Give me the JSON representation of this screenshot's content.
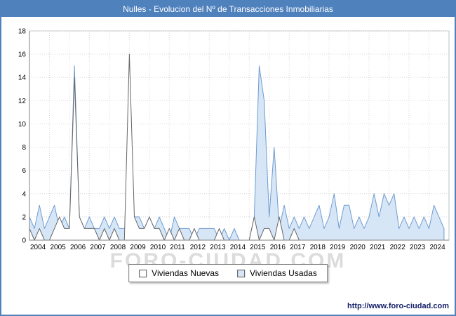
{
  "page": {
    "watermark": "FORO-CIUDAD.COM",
    "url": "http://www.foro-ciudad.com"
  },
  "chart_data": {
    "type": "area",
    "title": "Nulles - Evolucion del Nº de Transacciones Inmobiliarias",
    "xlabel": "",
    "ylabel": "",
    "ylim": [
      0,
      18
    ],
    "y_ticks": [
      0,
      2,
      4,
      6,
      8,
      10,
      12,
      14,
      16,
      18
    ],
    "x_start_year": 2004,
    "x_end_year": 2024,
    "points_per_year": 4,
    "x_tick_labels": [
      "2004",
      "2005",
      "2006",
      "2007",
      "2008",
      "2009",
      "2010",
      "2011",
      "2012",
      "2013",
      "2014",
      "2015",
      "2016",
      "2017",
      "2018",
      "2019",
      "2020",
      "2021",
      "2022",
      "2023",
      "2024"
    ],
    "grid": true,
    "legend_position": "bottom",
    "colors": {
      "title_bar": "#4f81bd",
      "frame_border": "#4f81bd",
      "grid": "#d9d9d9",
      "plot_border": "#bfbfbf"
    },
    "series": [
      {
        "name": "Viviendas Nuevas",
        "fill": "#ffffff",
        "stroke": "#666666",
        "values": [
          1,
          0,
          1,
          0,
          0,
          1,
          2,
          1,
          1,
          14,
          2,
          1,
          1,
          1,
          0,
          1,
          0,
          1,
          0,
          0,
          16,
          2,
          1,
          1,
          2,
          1,
          1,
          0,
          1,
          0,
          1,
          0,
          0,
          1,
          0,
          0,
          0,
          0,
          1,
          0,
          0,
          0,
          0,
          0,
          0,
          2,
          0,
          1,
          1,
          0,
          2,
          0,
          0,
          1,
          0,
          0,
          0,
          0,
          0,
          0,
          0,
          0,
          0,
          0,
          0,
          0,
          0,
          0,
          0,
          0,
          0,
          0,
          0,
          0,
          0,
          0,
          0,
          0,
          0,
          0,
          0,
          0,
          0,
          0
        ]
      },
      {
        "name": "Viviendas Usadas",
        "fill": "#d6e6f6",
        "stroke": "#6f9bd1",
        "values": [
          2,
          1,
          3,
          1,
          2,
          3,
          1,
          2,
          1,
          15,
          2,
          1,
          2,
          1,
          1,
          2,
          1,
          2,
          1,
          1,
          1,
          2,
          2,
          1,
          2,
          1,
          2,
          1,
          0,
          2,
          1,
          1,
          1,
          0,
          1,
          1,
          1,
          1,
          0,
          1,
          0,
          1,
          0,
          0,
          0,
          2,
          15,
          12,
          2,
          8,
          1,
          3,
          1,
          2,
          1,
          2,
          1,
          2,
          3,
          1,
          2,
          4,
          1,
          3,
          3,
          1,
          2,
          1,
          2,
          4,
          2,
          4,
          3,
          4,
          1,
          2,
          1,
          2,
          1,
          2,
          1,
          3,
          2,
          1
        ]
      }
    ]
  }
}
